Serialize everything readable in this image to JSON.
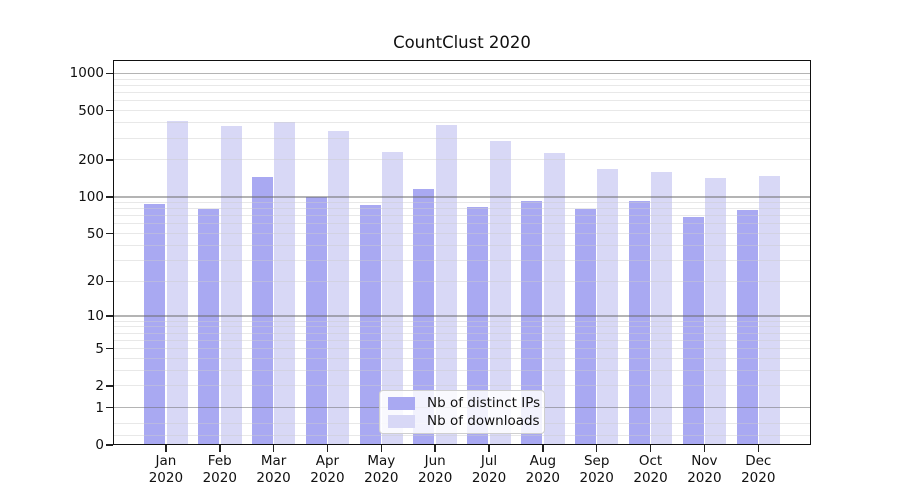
{
  "title": "CountClust 2020",
  "year": "2020",
  "colors": {
    "distinct_ips": "#a9a9f2",
    "downloads": "#d8d8f6",
    "major_grid": "#b4b4b4",
    "minor_grid": "#e8e8e8",
    "axis": "#111111"
  },
  "y_axis": {
    "tick_labels": [
      "1000",
      "500",
      "200",
      "100",
      "50",
      "20",
      "10",
      "5",
      "2",
      "1",
      "0"
    ],
    "tick_values": [
      1000,
      500,
      200,
      100,
      50,
      20,
      10,
      5,
      2,
      1,
      0
    ]
  },
  "chart_data": {
    "type": "bar",
    "title": "CountClust 2020",
    "categories": [
      "Jan 2020",
      "Feb 2020",
      "Mar 2020",
      "Apr 2020",
      "May 2020",
      "Jun 2020",
      "Jul 2020",
      "Aug 2020",
      "Sep 2020",
      "Oct 2020",
      "Nov 2020",
      "Dec 2020"
    ],
    "months": [
      "Jan",
      "Feb",
      "Mar",
      "Apr",
      "May",
      "Jun",
      "Jul",
      "Aug",
      "Sep",
      "Oct",
      "Nov",
      "Dec"
    ],
    "series": [
      {
        "name": "Nb of distinct IPs",
        "color": "#a9a9f2",
        "values": [
          88,
          80,
          145,
          100,
          86,
          115,
          82,
          93,
          80,
          92,
          68,
          78
        ]
      },
      {
        "name": "Nb of downloads",
        "color": "#d8d8f6",
        "values": [
          414,
          374,
          402,
          344,
          232,
          380,
          284,
          225,
          168,
          160,
          141,
          148
        ]
      }
    ],
    "xlabel": "",
    "ylabel": "",
    "yscale": "log1p",
    "ylim": [
      0,
      1285
    ],
    "major_grid_values": [
      1,
      10,
      100,
      1000
    ],
    "minor_grid_values": [
      0.2,
      0.5,
      2,
      3,
      4,
      5,
      6,
      7,
      8,
      9,
      20,
      30,
      40,
      50,
      60,
      70,
      80,
      90,
      200,
      300,
      400,
      500,
      600,
      700,
      800,
      900
    ],
    "grid": "both",
    "legend_position": "lower center"
  }
}
